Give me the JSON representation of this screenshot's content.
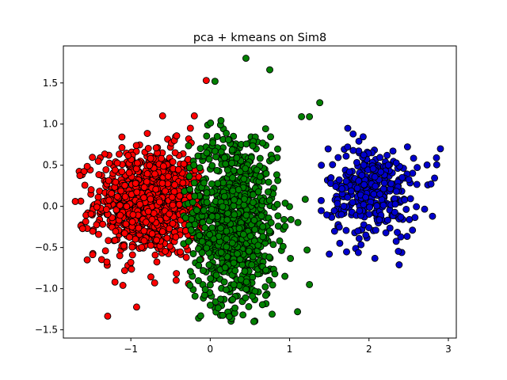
{
  "chart_data": {
    "type": "scatter",
    "title": "pca + kmeans on Sim8",
    "xlabel": "",
    "ylabel": "",
    "xlim": [
      -1.85,
      3.1
    ],
    "ylim": [
      -1.6,
      1.95
    ],
    "xticks": [
      -1,
      0,
      1,
      2,
      3
    ],
    "yticks": [
      -1.5,
      -1.0,
      -0.5,
      0.0,
      0.5,
      1.0,
      1.5
    ],
    "xtick_labels": [
      "−1",
      "0",
      "1",
      "2",
      "3"
    ],
    "ytick_labels": [
      "−1.5",
      "−1.0",
      "−0.5",
      "0.0",
      "0.5",
      "1.0",
      "1.5"
    ],
    "grid": false,
    "marker_edge_color": "#000000",
    "clusters": [
      {
        "color": "#ff0000",
        "center": [
          -0.75,
          0.05
        ],
        "spread": [
          0.35,
          0.33
        ],
        "count": 900,
        "x_range": [
          -1.72,
          -0.08
        ],
        "outliers": [
          [
            -0.6,
            1.1
          ],
          [
            -0.05,
            1.53
          ],
          [
            -1.55,
            -0.65
          ],
          [
            -1.2,
            -0.92
          ],
          [
            -1.1,
            -0.96
          ],
          [
            -0.7,
            -0.93
          ],
          [
            -1.7,
            0.06
          ],
          [
            -0.25,
            0.95
          ],
          [
            -0.2,
            1.1
          ]
        ]
      },
      {
        "color": "#008000",
        "center": [
          0.3,
          -0.15
        ],
        "spread": [
          0.28,
          0.55
        ],
        "count": 900,
        "x_range": [
          -0.35,
          1.25
        ],
        "outliers": [
          [
            0.45,
            1.8
          ],
          [
            0.75,
            1.66
          ],
          [
            1.38,
            1.26
          ],
          [
            1.15,
            1.09
          ],
          [
            1.25,
            1.09
          ],
          [
            0.55,
            -1.4
          ],
          [
            -0.12,
            -1.33
          ],
          [
            0.78,
            -1.31
          ],
          [
            1.1,
            -1.28
          ],
          [
            1.22,
            -0.53
          ],
          [
            1.25,
            -0.95
          ],
          [
            0.06,
            1.52
          ]
        ]
      },
      {
        "color": "#0000cd",
        "center": [
          2.05,
          0.18
        ],
        "spread": [
          0.28,
          0.28
        ],
        "count": 330,
        "x_range": [
          1.38,
          2.92
        ],
        "outliers": [
          [
            2.9,
            0.7
          ],
          [
            2.85,
            0.59
          ],
          [
            1.4,
            0.5
          ],
          [
            1.8,
            0.88
          ],
          [
            2.38,
            -0.71
          ],
          [
            1.5,
            -0.58
          ],
          [
            2.8,
            -0.12
          ]
        ]
      }
    ]
  }
}
